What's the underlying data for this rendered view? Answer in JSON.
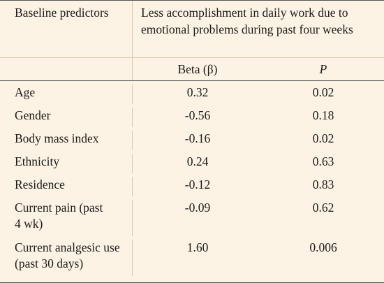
{
  "header": {
    "predictor_col": "Baseline predictors",
    "outcome_col": "Less accomplishment in daily work due to emotional problems during past four weeks",
    "beta_col": "Beta (β)",
    "p_col": "P"
  },
  "rows": [
    {
      "predictor": "Age",
      "beta": "0.32",
      "p": "0.02"
    },
    {
      "predictor": "Gender",
      "beta": "-0.56",
      "p": "0.18"
    },
    {
      "predictor": "Body mass index",
      "beta": "-0.16",
      "p": "0.02"
    },
    {
      "predictor": "Ethnicity",
      "beta": "0.24",
      "p": "0.63"
    },
    {
      "predictor": "Residence",
      "beta": "-0.12",
      "p": "0.83"
    },
    {
      "predictor": "Current pain (past 4 wk)",
      "beta": "-0.09",
      "p": "0.62"
    },
    {
      "predictor": "Current analgesic use (past 30 days)",
      "beta": "1.60",
      "p": "0.006"
    }
  ]
}
